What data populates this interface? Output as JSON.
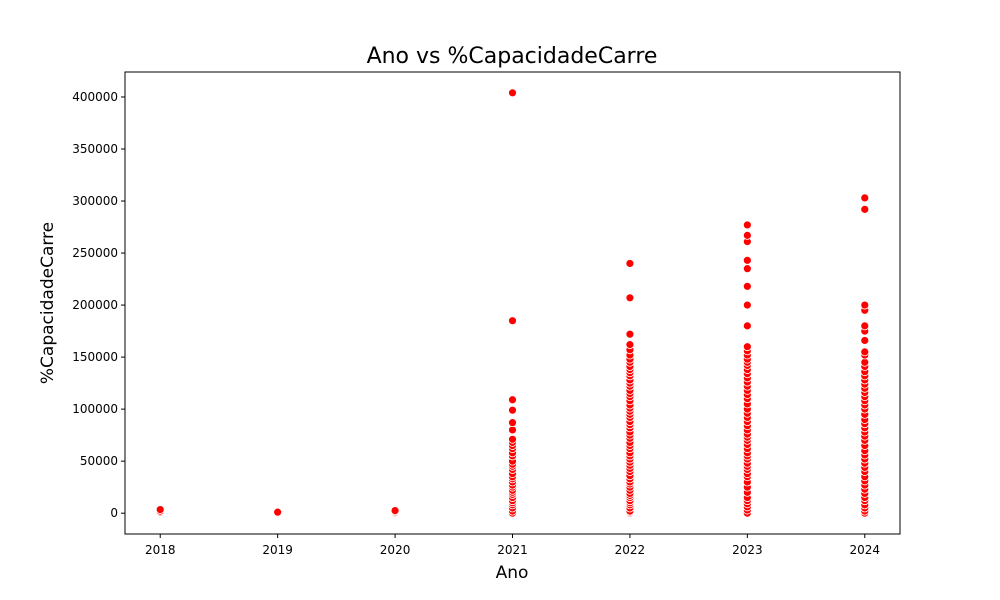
{
  "chart_data": {
    "type": "scatter",
    "title": "Ano vs %CapacidadeCarre",
    "xlabel": "Ano",
    "ylabel": "%CapacidadeCarre",
    "xlim": [
      2017.7,
      2024.3
    ],
    "ylim": [
      -20000,
      424000
    ],
    "x_ticks": [
      2018,
      2019,
      2020,
      2021,
      2022,
      2023,
      2024
    ],
    "x_tick_labels": [
      "2018",
      "2019",
      "2020",
      "2021",
      "2022",
      "2023",
      "2024"
    ],
    "y_ticks": [
      0,
      50000,
      100000,
      150000,
      200000,
      250000,
      300000,
      350000,
      400000
    ],
    "y_tick_labels": [
      "0",
      "50000",
      "100000",
      "150000",
      "200000",
      "250000",
      "300000",
      "350000",
      "400000"
    ],
    "grid": false,
    "marker_color": "#ff0000",
    "marker_edge": "#ffffff",
    "points": [
      {
        "x": 2018,
        "values": [
          0,
          500,
          1000,
          2000,
          3500
        ]
      },
      {
        "x": 2019,
        "values": [
          0,
          500,
          1000
        ]
      },
      {
        "x": 2020,
        "values": [
          0,
          500,
          1500,
          2500
        ]
      },
      {
        "x": 2021,
        "values": [
          0,
          2000,
          5000,
          8000,
          10000,
          12000,
          15000,
          18000,
          20000,
          22000,
          25000,
          27000,
          30000,
          33000,
          35000,
          38000,
          42000,
          45000,
          47000,
          50000,
          55000,
          58000,
          62000,
          65000,
          68000,
          71000,
          80000,
          87000,
          99000,
          109000,
          185000,
          404000
        ]
      },
      {
        "x": 2022,
        "values": [
          0,
          1000,
          2000,
          5000,
          8000,
          10000,
          12000,
          15000,
          17000,
          19000,
          22000,
          25000,
          28000,
          30000,
          33000,
          36000,
          40000,
          43000,
          46000,
          49000,
          52000,
          55000,
          58000,
          62000,
          65000,
          68000,
          72000,
          75000,
          78000,
          82000,
          85000,
          88000,
          92000,
          95000,
          98000,
          101000,
          104000,
          108000,
          112000,
          115000,
          118000,
          122000,
          125000,
          128000,
          132000,
          135000,
          138000,
          141000,
          145000,
          148000,
          152000,
          157000,
          162000,
          172000,
          207000,
          240000
        ]
      },
      {
        "x": 2023,
        "values": [
          0,
          3000,
          6000,
          9000,
          12000,
          15000,
          20000,
          25000,
          30000,
          35000,
          38000,
          42000,
          45000,
          48000,
          52000,
          55000,
          58000,
          62000,
          66000,
          70000,
          73000,
          76000,
          80000,
          84000,
          88000,
          92000,
          96000,
          100000,
          105000,
          110000,
          114000,
          118000,
          122000,
          126000,
          130000,
          134000,
          138000,
          142000,
          145000,
          148000,
          152000,
          156000,
          160000,
          180000,
          200000,
          218000,
          235000,
          243000,
          261000,
          267000,
          277000
        ]
      },
      {
        "x": 2024,
        "values": [
          0,
          2000,
          5000,
          8000,
          12000,
          15000,
          19000,
          23000,
          27000,
          31000,
          35000,
          40000,
          44000,
          48000,
          52000,
          56000,
          60000,
          65000,
          70000,
          74000,
          78000,
          82000,
          86000,
          90000,
          95000,
          100000,
          104000,
          108000,
          112000,
          116000,
          120000,
          124000,
          128000,
          132000,
          136000,
          141000,
          145000,
          152000,
          155000,
          166000,
          175000,
          180000,
          195000,
          200000,
          292000,
          303000
        ]
      }
    ]
  }
}
